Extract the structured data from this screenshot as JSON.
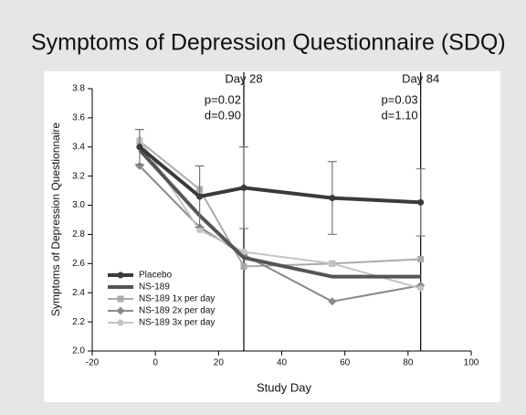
{
  "chart_data": {
    "type": "line",
    "title": "Symptoms of Depression Questionnaire (SDQ)",
    "x_label": "Study Day",
    "y_label": "Symptoms of Depression Questionnaire",
    "xlim": [
      -20,
      100
    ],
    "xticks": [
      -20,
      0,
      20,
      40,
      60,
      80,
      100
    ],
    "ylim": [
      2,
      3.8
    ],
    "yticks": [
      {
        "value": 2,
        "label": "2.0"
      },
      2.2,
      2.4,
      2.6,
      2.8,
      {
        "value": 3,
        "label": "3.0"
      },
      3.2,
      3.4,
      3.6,
      3.8
    ],
    "x": [
      -5,
      14,
      28,
      56,
      84
    ],
    "series": [
      {
        "name": "Placebo",
        "color": "#3a3a3a",
        "marker": "circle",
        "values": [
          3.4,
          3.06,
          3.12,
          3.05,
          3.02
        ],
        "errors": [
          0.12,
          0.21,
          0.28,
          0.25,
          0.23
        ]
      },
      {
        "name": "NS-189",
        "color": "#555555",
        "marker": "none",
        "values": [
          3.38,
          2.93,
          2.64,
          2.51,
          2.51
        ]
      },
      {
        "name": "NS-189 1x per day",
        "color": "#aaaaaa",
        "marker": "square",
        "values": [
          3.44,
          3.11,
          2.58,
          2.6,
          2.63
        ]
      },
      {
        "name": "NS-189 2x per day",
        "color": "#8a8a8a",
        "marker": "diamond",
        "values": [
          3.27,
          2.85,
          2.66,
          2.34,
          2.45
        ]
      },
      {
        "name": "NS-189 3x per day",
        "color": "#c4c4c4",
        "marker": "circle",
        "values": [
          3.45,
          2.83,
          2.68,
          2.6,
          2.43
        ]
      }
    ],
    "reference_lines": [
      {
        "x": 28,
        "label": "Day 28",
        "annotations": [
          "p=0.02",
          "d=0.90"
        ]
      },
      {
        "x": 84,
        "label": "Day 84",
        "annotations": [
          "p=0.03",
          "d=1.10"
        ]
      }
    ]
  }
}
